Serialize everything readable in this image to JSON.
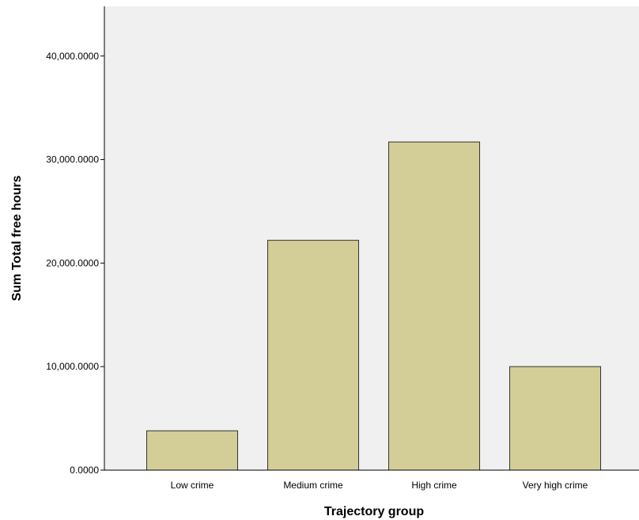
{
  "chart_data": {
    "type": "bar",
    "title": "",
    "xlabel": "Trajectory group",
    "ylabel": "Sum Total free hours",
    "categories": [
      "Low crime",
      "Medium crime",
      "High crime",
      "Very high crime"
    ],
    "values": [
      3800,
      22200,
      31700,
      10000
    ],
    "ylim": [
      0,
      44800
    ],
    "yticks": [
      0,
      10000,
      20000,
      30000,
      40000
    ],
    "ytick_labels": [
      "0.0000",
      "10,000.0000",
      "20,000.0000",
      "30,000.0000",
      "40,000.0000"
    ],
    "grid": false,
    "legend": "none",
    "colors": {
      "bar_fill": "#d3ce97",
      "bar_stroke": "#333333",
      "plot_background": "#f0f0f0",
      "axis": "#000000"
    }
  }
}
